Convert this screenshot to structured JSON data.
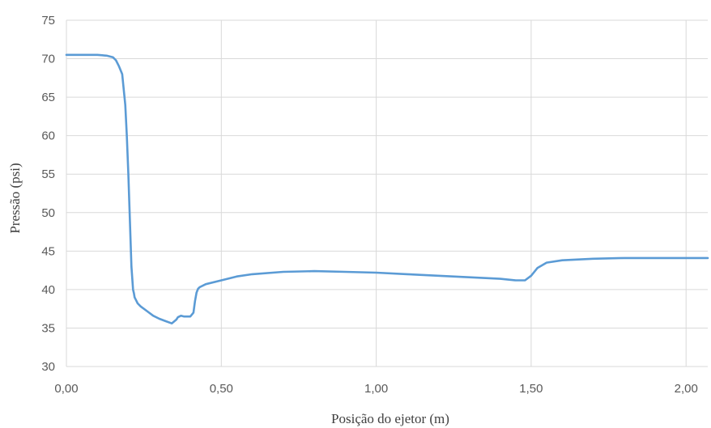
{
  "chart_data": {
    "type": "line",
    "xlabel": "Posição do ejetor (m)",
    "ylabel": "Pressão (psi)",
    "xlim": [
      0,
      2.07
    ],
    "ylim": [
      30,
      75
    ],
    "x_ticks": [
      0,
      0.5,
      1.0,
      1.5,
      2.0
    ],
    "x_tick_labels": [
      "0,00",
      "0,50",
      "1,00",
      "1,50",
      "2,00"
    ],
    "y_ticks": [
      30,
      35,
      40,
      45,
      50,
      55,
      60,
      65,
      70,
      75
    ],
    "y_tick_labels": [
      "30",
      "35",
      "40",
      "45",
      "50",
      "55",
      "60",
      "65",
      "70",
      "75"
    ],
    "grid": "vertical and horizontal",
    "legend": "none",
    "series": [
      {
        "color": "#5b9bd5",
        "x": [
          0.0,
          0.05,
          0.1,
          0.13,
          0.15,
          0.16,
          0.17,
          0.18,
          0.19,
          0.195,
          0.2,
          0.205,
          0.21,
          0.215,
          0.218,
          0.22,
          0.225,
          0.23,
          0.24,
          0.26,
          0.28,
          0.3,
          0.32,
          0.34,
          0.355,
          0.36,
          0.37,
          0.38,
          0.4,
          0.41,
          0.415,
          0.42,
          0.425,
          0.43,
          0.45,
          0.5,
          0.55,
          0.6,
          0.7,
          0.8,
          0.9,
          1.0,
          1.1,
          1.2,
          1.3,
          1.4,
          1.45,
          1.48,
          1.5,
          1.52,
          1.55,
          1.6,
          1.7,
          1.8,
          1.9,
          2.0,
          2.07
        ],
        "y": [
          70.5,
          70.5,
          70.5,
          70.4,
          70.2,
          69.8,
          69.0,
          68.0,
          64.0,
          60.0,
          55.0,
          49.0,
          43.0,
          40.0,
          39.5,
          39.0,
          38.6,
          38.2,
          37.8,
          37.2,
          36.6,
          36.2,
          35.9,
          35.6,
          36.1,
          36.4,
          36.6,
          36.5,
          36.5,
          37.0,
          38.5,
          39.6,
          40.1,
          40.3,
          40.7,
          41.2,
          41.7,
          42.0,
          42.3,
          42.4,
          42.3,
          42.2,
          42.0,
          41.8,
          41.6,
          41.4,
          41.2,
          41.2,
          41.8,
          42.8,
          43.5,
          43.8,
          44.0,
          44.1,
          44.1,
          44.1,
          44.1
        ]
      }
    ]
  }
}
